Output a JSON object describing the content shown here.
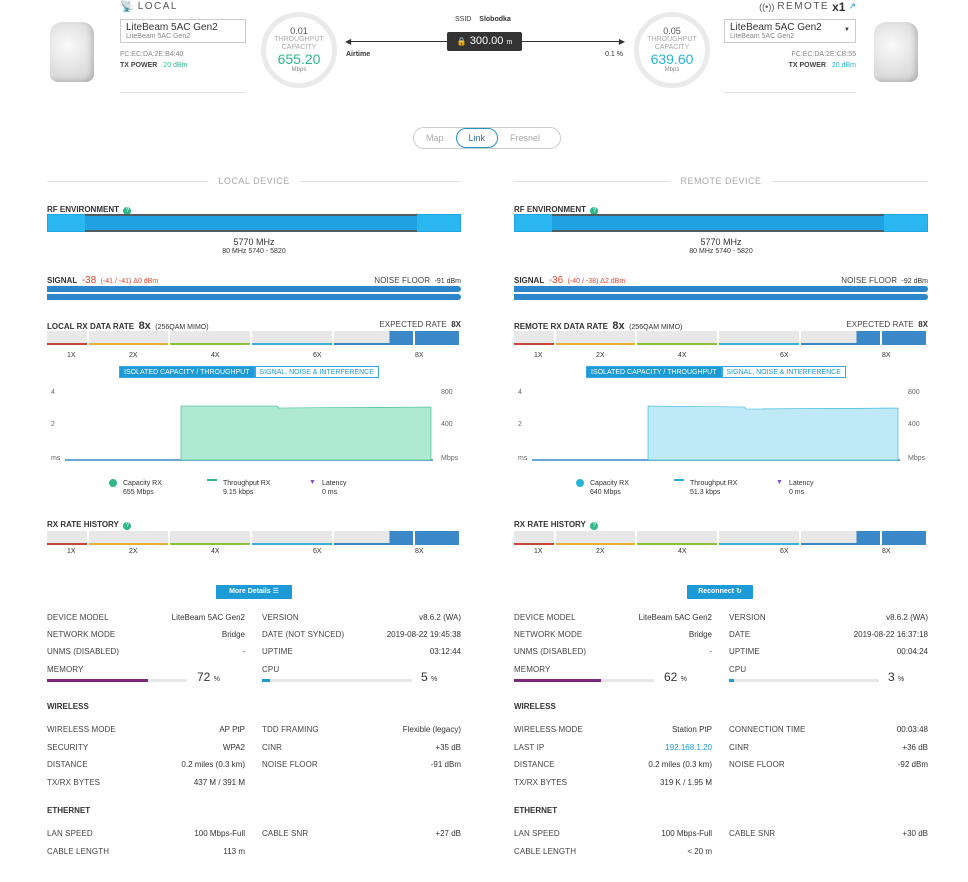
{
  "top": {
    "local": {
      "title": "LOCAL",
      "model": "LiteBeam 5AC Gen2",
      "model_sub": "LiteBeam 5AC Gen2",
      "mac": "FC:EC:DA:2E:B4:40",
      "txpower_label": "TX POWER",
      "txpower": "20 dBm"
    },
    "remote": {
      "title": "REMOTE",
      "count": "x1",
      "model": "LiteBeam 5AC Gen2",
      "model_sub": "LiteBeam 5AC Gen2",
      "mac": "FC:EC:DA:2E:CB:55",
      "txpower_label": "TX POWER",
      "txpower": "20 dBm"
    },
    "gauge_left": {
      "top": "0.01",
      "label1": "THROUGHPUT",
      "label2": "CAPACITY",
      "value": "655.20",
      "unit": "Mbps"
    },
    "gauge_right": {
      "top": "0.05",
      "label1": "THROUGHPUT",
      "label2": "CAPACITY",
      "value": "639.60",
      "unit": "Mbps"
    },
    "ssid_label": "SSID",
    "ssid": "Slobodka",
    "distance": "300.00",
    "distance_unit": "m",
    "airtime_label": "Airtime",
    "airtime": "0.1 %"
  },
  "views": {
    "map": "Map",
    "link": "Link",
    "fresnel": "Fresnel"
  },
  "local": {
    "section": "LOCAL DEVICE",
    "rf_title": "RF ENVIRONMENT",
    "freq": "5770 MHz",
    "chan_width": "80 MHz",
    "chan_range": "5740 - 5820",
    "signal_label": "SIGNAL",
    "signal": "-38",
    "signal_detail": "(-41 / -41) Δ0 dBm",
    "noise_label": "NOISE FLOOR",
    "noise": "-91 dBm",
    "rate_label": "LOCAL RX DATA RATE",
    "rate": "8x",
    "rate_mod": "(256QAM MIMO)",
    "expected_label": "EXPECTED RATE",
    "expected": "8X",
    "rate_ticks": [
      "1X",
      "2X",
      "4X",
      "6X",
      "8X"
    ],
    "tab_on": "ISOLATED CAPACITY / THROUGHPUT",
    "tab_off": "SIGNAL, NOISE & INTERFERENCE",
    "chart_left_ticks": [
      "4",
      "2",
      "ms"
    ],
    "chart_right_ticks": [
      "800",
      "400",
      "Mbps"
    ],
    "legend": [
      {
        "name": "Capacity RX",
        "value": "655 Mbps"
      },
      {
        "name": "Throughput RX",
        "value": "9.15 kbps"
      },
      {
        "name": "Latency",
        "value": "0 ms"
      }
    ],
    "history_title": "RX RATE HISTORY",
    "history_ticks": [
      "1X",
      "2X",
      "4X",
      "6X",
      "8X"
    ],
    "button": "More Details",
    "info": [
      {
        "k": "DEVICE MODEL",
        "v": "LiteBeam 5AC Gen2",
        "k2": "VERSION",
        "v2": "v8.6.2 (WA)"
      },
      {
        "k": "NETWORK MODE",
        "v": "Bridge",
        "k2": "DATE (NOT SYNCED)",
        "v2": "2019-08-22 19:45:38"
      },
      {
        "k": "UNMS (DISABLED)",
        "v": "-",
        "k2": "UPTIME",
        "v2": "03:12:44"
      }
    ],
    "memory_label": "MEMORY",
    "memory": "72",
    "cpu_label": "CPU",
    "cpu": "5",
    "pct": "%",
    "wireless_title": "WIRELESS",
    "wireless": [
      {
        "k": "WIRELESS MODE",
        "v": "AP PtP",
        "k2": "TDD FRAMING",
        "v2": "Flexible (legacy)"
      },
      {
        "k": "SECURITY",
        "v": "WPA2",
        "k2": "CINR",
        "v2": "+35 dB"
      },
      {
        "k": "DISTANCE",
        "v": "0.2 miles (0.3 km)",
        "k2": "NOISE FLOOR",
        "v2": "-91 dBm"
      },
      {
        "k": "TX/RX BYTES",
        "v": "437 M / 391 M",
        "k2": "",
        "v2": ""
      }
    ],
    "ethernet_title": "ETHERNET",
    "ethernet": [
      {
        "k": "LAN SPEED",
        "v": "100 Mbps-Full",
        "k2": "CABLE SNR",
        "v2": "+27 dB"
      },
      {
        "k": "CABLE LENGTH",
        "v": "113 m",
        "k2": "",
        "v2": ""
      }
    ]
  },
  "remote": {
    "section": "REMOTE DEVICE",
    "rf_title": "RF ENVIRONMENT",
    "freq": "5770 MHz",
    "chan_width": "80 MHz",
    "chan_range": "5740 - 5820",
    "signal_label": "SIGNAL",
    "signal": "-36",
    "signal_detail": "(-40 / -38) Δ2 dBm",
    "noise_label": "NOISE FLOOR",
    "noise": "-92 dBm",
    "rate_label": "REMOTE RX DATA RATE",
    "rate": "8x",
    "rate_mod": "(256QAM MIMO)",
    "expected_label": "EXPECTED RATE",
    "expected": "8X",
    "rate_ticks": [
      "1X",
      "2X",
      "4X",
      "6X",
      "8X"
    ],
    "tab_on": "ISOLATED CAPACITY / THROUGHPUT",
    "tab_off": "SIGNAL, NOISE & INTERFERENCE",
    "chart_left_ticks": [
      "4",
      "2",
      "ms"
    ],
    "chart_right_ticks": [
      "800",
      "400",
      "Mbps"
    ],
    "legend": [
      {
        "name": "Capacity RX",
        "value": "640 Mbps"
      },
      {
        "name": "Throughput RX",
        "value": "51.3 kbps"
      },
      {
        "name": "Latency",
        "value": "0 ms"
      }
    ],
    "history_title": "RX RATE HISTORY",
    "history_ticks": [
      "1X",
      "2X",
      "4X",
      "6X",
      "8X"
    ],
    "button": "Reconnect",
    "info": [
      {
        "k": "DEVICE MODEL",
        "v": "LiteBeam 5AC Gen2",
        "k2": "VERSION",
        "v2": "v8.6.2 (WA)"
      },
      {
        "k": "NETWORK MODE",
        "v": "Bridge",
        "k2": "DATE",
        "v2": "2019-08-22 16:37:18"
      },
      {
        "k": "UNMS (DISABLED)",
        "v": "-",
        "k2": "UPTIME",
        "v2": "00:04:24"
      }
    ],
    "memory_label": "MEMORY",
    "memory": "62",
    "cpu_label": "CPU",
    "cpu": "3",
    "pct": "%",
    "wireless_title": "WIRELESS",
    "wireless": [
      {
        "k": "WIRELESS MODE",
        "v": "Station PtP",
        "k2": "CONNECTION TIME",
        "v2": "00:03:48"
      },
      {
        "k": "LAST IP",
        "v": "192.168.1.20",
        "k2": "CINR",
        "v2": "+36 dB"
      },
      {
        "k": "DISTANCE",
        "v": "0.2 miles (0.3 km)",
        "k2": "NOISE FLOOR",
        "v2": "-92 dBm"
      },
      {
        "k": "TX/RX BYTES",
        "v": "319 K / 1.95 M",
        "k2": "",
        "v2": ""
      }
    ],
    "ethernet_title": "ETHERNET",
    "ethernet": [
      {
        "k": "LAN SPEED",
        "v": "100 Mbps-Full",
        "k2": "CABLE SNR",
        "v2": "+30 dB"
      },
      {
        "k": "CABLE LENGTH",
        "v": "< 20 m",
        "k2": "",
        "v2": ""
      }
    ]
  },
  "colors": {
    "accent": "#1d9bd6",
    "green": "#2eb88a",
    "teal": "#27b4d4",
    "red": "#e0442d",
    "local_fill": "#aee9d3",
    "remote_fill": "#bfe9f7"
  }
}
